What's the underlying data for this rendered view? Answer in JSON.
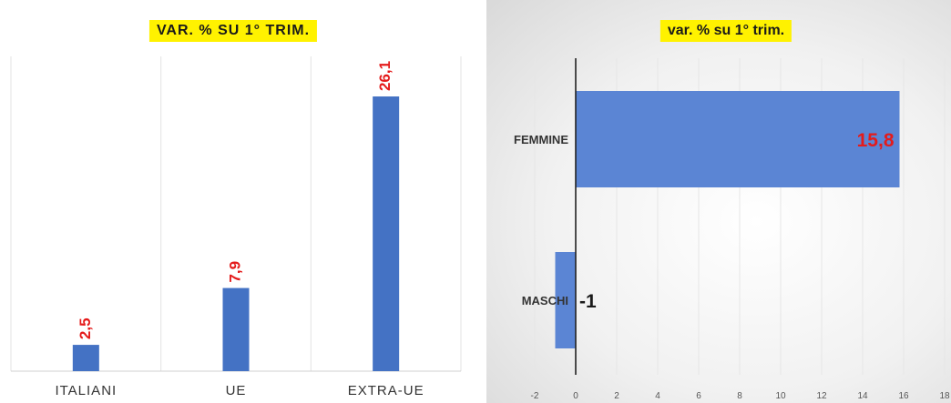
{
  "chart_data": [
    {
      "type": "bar",
      "title": "VAR. % SU 1° TRIM.",
      "categories": [
        "ITALIANI",
        "UE",
        "EXTRA-UE"
      ],
      "values": [
        2.5,
        7.9,
        26.1
      ],
      "data_labels": [
        "2,5",
        "7,9",
        "26,1"
      ],
      "ylim": [
        0,
        30
      ],
      "bar_color": "#4472c4",
      "label_color": "#e41b1b",
      "grid": "vertical separators"
    },
    {
      "type": "bar",
      "orientation": "horizontal",
      "title": "var. % su 1° trim.",
      "categories": [
        "FEMMINE",
        "MASCHI"
      ],
      "values": [
        15.8,
        -1
      ],
      "data_labels": [
        "15,8",
        "-1"
      ],
      "xlim": [
        -2,
        18
      ],
      "xticks": [
        -2,
        0,
        2,
        4,
        6,
        8,
        10,
        12,
        14,
        16,
        18
      ],
      "bar_color": "#5b85d4",
      "label_colors": [
        "#e41b1b",
        "#1a1a1a"
      ],
      "grid": true
    }
  ]
}
